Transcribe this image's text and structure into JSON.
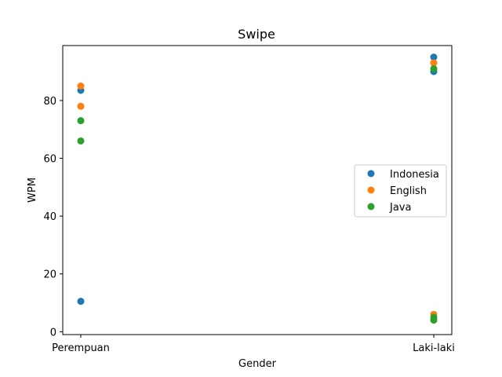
{
  "chart_data": {
    "type": "scatter",
    "title": "Swipe",
    "xlabel": "Gender",
    "ylabel": "WPM",
    "categories": [
      "Perempuan",
      "Laki-laki"
    ],
    "ylim": [
      -1,
      99
    ],
    "yticks": [
      0,
      20,
      40,
      60,
      80
    ],
    "grid": false,
    "legend_position": "center-right",
    "series": [
      {
        "name": "Indonesia",
        "color": "#1f77b4",
        "points": [
          [
            "Perempuan",
            83.5
          ],
          [
            "Perempuan",
            10.5
          ],
          [
            "Laki-laki",
            95
          ],
          [
            "Laki-laki",
            90
          ]
        ]
      },
      {
        "name": "English",
        "color": "#ff7f0e",
        "points": [
          [
            "Perempuan",
            85
          ],
          [
            "Perempuan",
            78
          ],
          [
            "Laki-laki",
            93
          ],
          [
            "Laki-laki",
            6
          ]
        ]
      },
      {
        "name": "Java",
        "color": "#2ca02c",
        "points": [
          [
            "Perempuan",
            73
          ],
          [
            "Perempuan",
            66
          ],
          [
            "Laki-laki",
            91
          ],
          [
            "Laki-laki",
            5
          ],
          [
            "Laki-laki",
            4
          ]
        ]
      }
    ]
  }
}
